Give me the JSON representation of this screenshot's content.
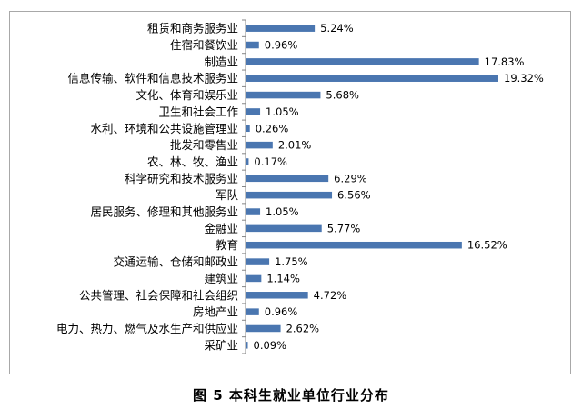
{
  "caption": "图 5 本科生就业单位行业分布",
  "colors": {
    "bar": "#4a76b0",
    "axis": "#868686",
    "frame": "#a8a8a8"
  },
  "chart_data": {
    "type": "bar",
    "orientation": "horizontal",
    "title": "",
    "xlabel": "",
    "ylabel": "",
    "xlim": [
      0,
      20
    ],
    "grid": false,
    "legend": "none",
    "categories": [
      "租赁和商务服务业",
      "住宿和餐饮业",
      "制造业",
      "信息传输、软件和信息技术服务业",
      "文化、体育和娱乐业",
      "卫生和社会工作",
      "水利、环境和公共设施管理业",
      "批发和零售业",
      "农、林、牧、渔业",
      "科学研究和技术服务业",
      "军队",
      "居民服务、修理和其他服务业",
      "金融业",
      "教育",
      "交通运输、仓储和邮政业",
      "建筑业",
      "公共管理、社会保障和社会组织",
      "房地产业",
      "电力、热力、燃气及水生产和供应业",
      "采矿业"
    ],
    "values": [
      5.24,
      0.96,
      17.83,
      19.32,
      5.68,
      1.05,
      0.26,
      2.01,
      0.17,
      6.29,
      6.56,
      1.05,
      5.77,
      16.52,
      1.75,
      1.14,
      4.72,
      0.96,
      2.62,
      0.09
    ],
    "data_labels": [
      "5.24%",
      "0.96%",
      "17.83%",
      "19.32%",
      "5.68%",
      "1.05%",
      "0.26%",
      "2.01%",
      "0.17%",
      "6.29%",
      "6.56%",
      "1.05%",
      "5.77%",
      "16.52%",
      "1.75%",
      "1.14%",
      "4.72%",
      "0.96%",
      "2.62%",
      "0.09%"
    ]
  }
}
